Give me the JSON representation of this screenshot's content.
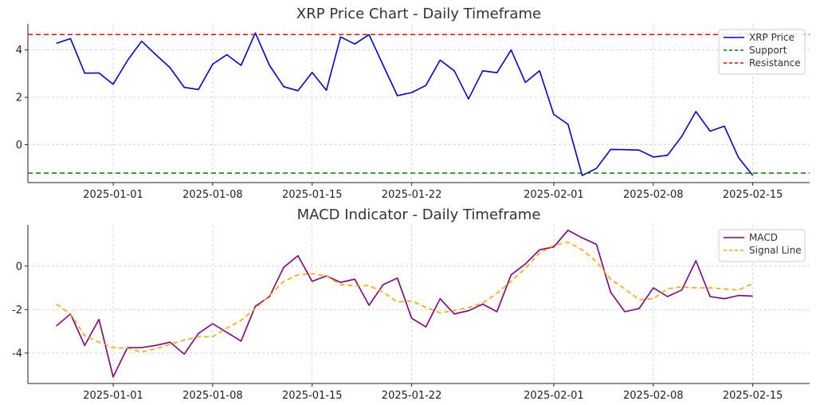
{
  "chart_data": [
    {
      "type": "line",
      "title": "XRP Price Chart - Daily Timeframe",
      "xlabel": "",
      "ylabel": "",
      "x_start": "2024-12-28",
      "xticks": [
        "2025-01-01",
        "2025-01-08",
        "2025-01-15",
        "2025-01-22",
        "2025-02-01",
        "2025-02-08",
        "2025-02-15"
      ],
      "xlim": [
        "2024-12-26",
        "2025-02-19"
      ],
      "yticks": [
        0,
        2,
        4
      ],
      "ylim": [
        -1.6,
        5.1
      ],
      "grid": true,
      "legend": "top-right",
      "series": [
        {
          "name": "XRP Price",
          "color": "#0000dd",
          "style": "solid",
          "values": [
            4.28,
            4.48,
            3.02,
            3.03,
            2.55,
            3.55,
            4.37,
            3.8,
            3.25,
            2.42,
            2.33,
            3.4,
            3.8,
            3.35,
            4.72,
            3.35,
            2.45,
            2.28,
            3.05,
            2.3,
            4.55,
            4.25,
            4.65,
            3.35,
            2.07,
            2.2,
            2.5,
            3.57,
            3.12,
            1.93,
            3.12,
            3.04,
            4.0,
            2.63,
            3.12,
            1.28,
            0.86,
            -1.3,
            -1.0,
            -0.2,
            -0.21,
            -0.23,
            -0.52,
            -0.45,
            0.35,
            1.4,
            0.57,
            0.78,
            -0.55,
            -1.3
          ]
        },
        {
          "name": "Support",
          "color": "#008000",
          "style": "dashed",
          "constant": -1.2
        },
        {
          "name": "Resistance",
          "color": "#ff0000",
          "style": "dashed",
          "constant": 4.65
        }
      ]
    },
    {
      "type": "line",
      "title": "MACD Indicator - Daily Timeframe",
      "xlabel": "",
      "ylabel": "",
      "x_start": "2024-12-28",
      "xticks": [
        "2025-01-01",
        "2025-01-08",
        "2025-01-15",
        "2025-01-22",
        "2025-02-01",
        "2025-02-08",
        "2025-02-15"
      ],
      "xlim": [
        "2024-12-26",
        "2025-02-19"
      ],
      "yticks": [
        -4,
        -2,
        0
      ],
      "ylim": [
        -5.4,
        1.9
      ],
      "grid": true,
      "legend": "top-right",
      "series": [
        {
          "name": "MACD",
          "color": "#800080",
          "style": "solid",
          "values": [
            -2.75,
            -2.2,
            -3.65,
            -2.45,
            -5.1,
            -3.75,
            -3.75,
            -3.65,
            -3.5,
            -4.05,
            -3.1,
            -2.65,
            -3.05,
            -3.45,
            -1.85,
            -1.4,
            -0.05,
            0.48,
            -0.7,
            -0.45,
            -0.75,
            -0.6,
            -1.8,
            -0.85,
            -0.55,
            -2.4,
            -2.8,
            -1.5,
            -2.2,
            -2.05,
            -1.75,
            -2.1,
            -0.4,
            0.1,
            0.75,
            0.88,
            1.65,
            1.3,
            1.0,
            -1.2,
            -2.1,
            -1.95,
            -1.0,
            -1.4,
            -1.1,
            0.25,
            -1.4,
            -1.5,
            -1.35,
            -1.38
          ]
        },
        {
          "name": "Signal Line",
          "color": "#ffa500",
          "style": "dashed",
          "values": [
            -1.75,
            -2.2,
            -3.2,
            -3.5,
            -3.75,
            -3.78,
            -3.95,
            -3.8,
            -3.6,
            -3.4,
            -3.25,
            -3.25,
            -2.85,
            -2.5,
            -1.95,
            -1.35,
            -0.7,
            -0.4,
            -0.35,
            -0.45,
            -0.85,
            -0.9,
            -0.9,
            -1.2,
            -1.65,
            -1.6,
            -1.9,
            -2.15,
            -2.05,
            -1.9,
            -1.7,
            -1.25,
            -0.7,
            -0.1,
            0.6,
            0.95,
            1.1,
            0.75,
            0.2,
            -0.6,
            -1.05,
            -1.55,
            -1.5,
            -1.05,
            -0.95,
            -1.0,
            -1.0,
            -1.05,
            -1.1,
            -0.8
          ]
        }
      ]
    }
  ]
}
